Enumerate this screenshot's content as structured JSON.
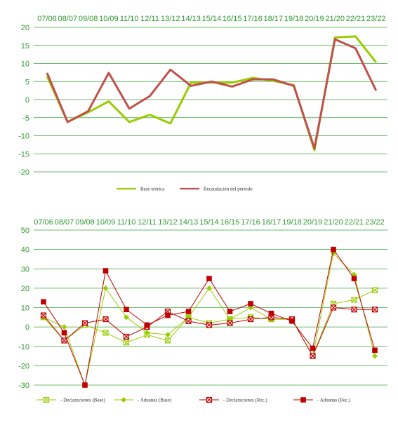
{
  "chart_data": [
    {
      "type": "line",
      "categories": [
        "07/06",
        "08/07",
        "09/08",
        "10/09",
        "11/10",
        "12/11",
        "13/12",
        "14/13",
        "15/14",
        "16/15",
        "17/16",
        "18/17",
        "19/18",
        "20/19",
        "21/20",
        "22/21",
        "23/22"
      ],
      "ylim": [
        -20,
        20
      ],
      "yticks": [
        20,
        15,
        10,
        5,
        0,
        -5,
        -10,
        -15,
        -20
      ],
      "grid": true,
      "legend_position": "bottom",
      "series": [
        {
          "name": "Base teórica",
          "color": "#99cc00",
          "values": [
            6.5,
            -6.2,
            -3.5,
            -0.5,
            -6.2,
            -4.2,
            -6.6,
            4.7,
            4.7,
            4.7,
            6.0,
            5.2,
            4.0,
            -14.0,
            17.2,
            17.5,
            10.3
          ]
        },
        {
          "name": "Recaudación del período",
          "color": "#c0504d",
          "values": [
            7.4,
            -6.2,
            -3.2,
            7.4,
            -2.5,
            1.0,
            8.3,
            3.8,
            5.0,
            3.6,
            5.6,
            5.6,
            3.8,
            -13.5,
            16.7,
            14.2,
            2.5
          ]
        }
      ]
    },
    {
      "type": "line",
      "categories": [
        "07/06",
        "08/07",
        "09/08",
        "10/09",
        "11/10",
        "12/11",
        "13/12",
        "14/13",
        "15/14",
        "16/15",
        "17/16",
        "18/17",
        "19/18",
        "20/19",
        "21/20",
        "22/21",
        "23/22"
      ],
      "ylim": [
        -30,
        50
      ],
      "yticks": [
        50,
        40,
        30,
        20,
        10,
        0,
        -10,
        -20,
        -30
      ],
      "grid": true,
      "legend_position": "bottom",
      "series": [
        {
          "name": "- Declaraciones (Base)",
          "color": "#99cc00",
          "marker": "x-square",
          "values": [
            5,
            -7,
            1,
            -3,
            -8,
            -4,
            -7,
            5,
            2,
            4,
            5,
            4,
            4,
            -15,
            12,
            14,
            19
          ]
        },
        {
          "name": "- Aduanas (Base)",
          "color": "#99cc00",
          "marker": "diamond",
          "values": [
            5,
            0,
            -30,
            20,
            5,
            -3,
            -4,
            5,
            20,
            4,
            10,
            4,
            4,
            -15,
            38,
            27,
            -15
          ]
        },
        {
          "name": "- Declaraciones (Rec.)",
          "color": "#c00000",
          "marker": "x-square",
          "values": [
            6,
            -7,
            2,
            4,
            -5,
            0,
            8,
            3,
            1,
            2,
            4,
            5,
            4,
            -15,
            10,
            9,
            9
          ]
        },
        {
          "name": "- Aduanas (Rec.)",
          "color": "#c00000",
          "marker": "square",
          "values": [
            13,
            -3,
            -30,
            29,
            9,
            1,
            6,
            8,
            25,
            8,
            12,
            7,
            3,
            -11,
            40,
            25,
            -12
          ]
        }
      ]
    }
  ]
}
